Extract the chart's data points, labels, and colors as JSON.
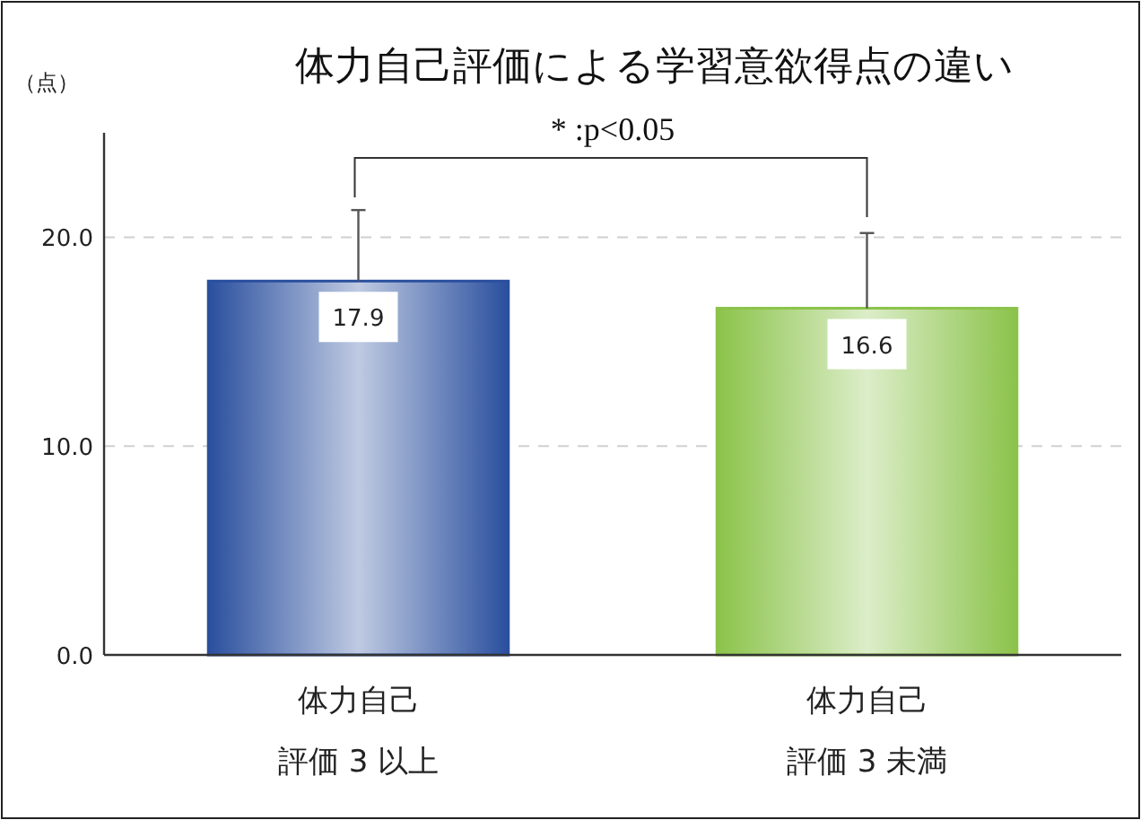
{
  "chart_data": {
    "type": "bar",
    "title": "体力自己評価による学習意欲得点の違い",
    "ylabel": "（点）",
    "categories": [
      "体力自己評価 3 以上",
      "体力自己評価 3 未満"
    ],
    "values": [
      17.9,
      16.6
    ],
    "errors": [
      3.4,
      3.6
    ],
    "colors": [
      "#2a4f9e",
      "#8bc34a"
    ],
    "ylim": [
      0,
      25
    ],
    "yticks": [
      {
        "value": 0,
        "label": "0.0"
      },
      {
        "value": 10,
        "label": "10.0"
      },
      {
        "value": 20,
        "label": "20.0"
      }
    ],
    "grid": "y",
    "data_labels": true,
    "annotations": [
      "* :p<0.05"
    ]
  }
}
